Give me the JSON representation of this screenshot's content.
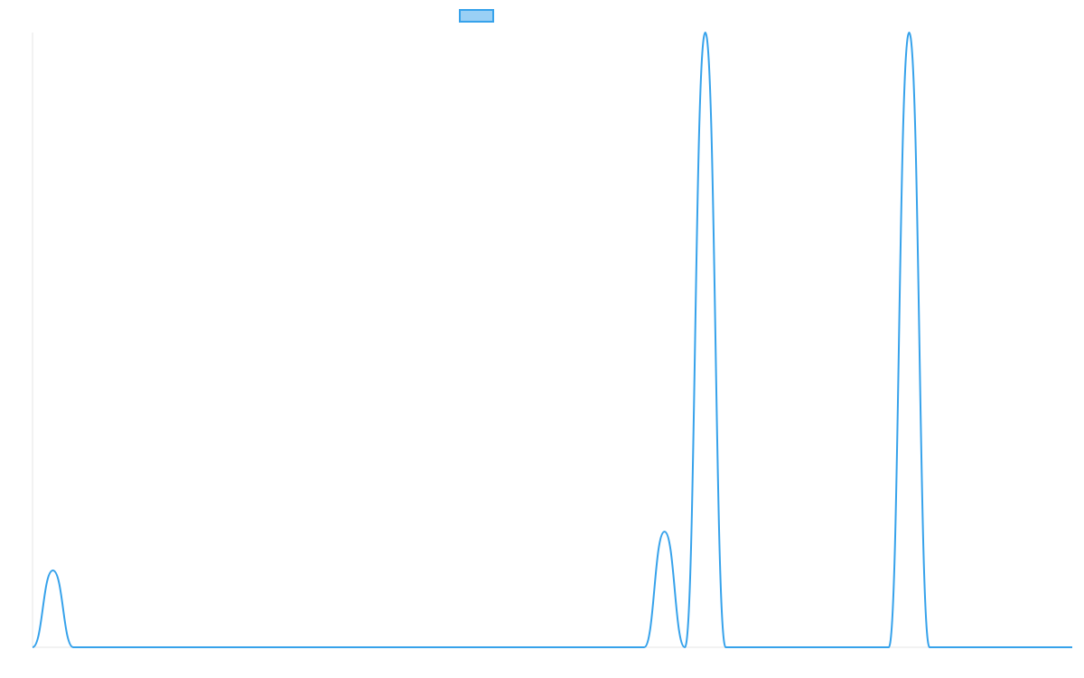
{
  "chart_data": {
    "type": "line",
    "title": "",
    "xlabel": "",
    "ylabel": "",
    "x": [
      0,
      1,
      2,
      3,
      4,
      5,
      6,
      7,
      8,
      9,
      10,
      11,
      12,
      13,
      14,
      15,
      16,
      17,
      18,
      19,
      20,
      21,
      22,
      23,
      24,
      25,
      26,
      27,
      28,
      29,
      30,
      31,
      32,
      33,
      34,
      35,
      36,
      37,
      38,
      39,
      40,
      41,
      42,
      43,
      44,
      45,
      46,
      47,
      48,
      49,
      50,
      51
    ],
    "series": [
      {
        "name": "",
        "values": [
          0,
          0.125,
          0,
          0,
          0,
          0,
          0,
          0,
          0,
          0,
          0,
          0,
          0,
          0,
          0,
          0,
          0,
          0,
          0,
          0,
          0,
          0,
          0,
          0,
          0,
          0,
          0,
          0,
          0,
          0,
          0,
          0.188,
          0,
          1,
          0,
          0,
          0,
          0,
          0,
          0,
          0,
          0,
          0,
          1,
          0,
          0,
          0,
          0,
          0,
          0,
          0,
          0
        ]
      }
    ],
    "ylim": [
      0,
      1
    ],
    "grid": false,
    "show_axis_labels": false,
    "legend_position": "top-center",
    "colors": {
      "line": "#36a2eb",
      "legend_fill": "#9ad0f5",
      "axis": "#e6e6e6"
    }
  }
}
